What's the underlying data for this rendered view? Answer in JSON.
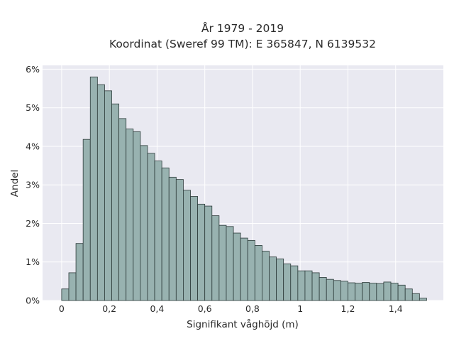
{
  "chart_data": {
    "type": "bar",
    "title": [
      "År 1979 - 2019",
      "Koordinat (Sweref 99 TM): E 365847, N 6139532"
    ],
    "xlabel": "Signifikant våghöjd (m)",
    "ylabel": "Andel",
    "xlim": [
      -0.08,
      1.6
    ],
    "ylim": [
      0,
      6.1
    ],
    "xticks": [
      0,
      0.2,
      0.4,
      0.6,
      0.8,
      1.0,
      1.2,
      1.4
    ],
    "xtick_labels": [
      "0",
      "0,2",
      "0,4",
      "0,6",
      "0,8",
      "1",
      "1,2",
      "1,4"
    ],
    "yticks": [
      0,
      1,
      2,
      3,
      4,
      5,
      6
    ],
    "ytick_labels": [
      "0%",
      "1%",
      "2%",
      "3%",
      "4%",
      "5%",
      "6%"
    ],
    "grid": true,
    "bin_start": 0,
    "bin_width": 0.03,
    "values": [
      0.3,
      0.72,
      1.48,
      4.18,
      5.8,
      5.6,
      5.44,
      5.1,
      4.72,
      4.45,
      4.38,
      4.02,
      3.82,
      3.62,
      3.44,
      3.2,
      3.14,
      2.86,
      2.7,
      2.5,
      2.45,
      2.2,
      1.95,
      1.92,
      1.75,
      1.62,
      1.56,
      1.43,
      1.28,
      1.13,
      1.08,
      0.95,
      0.9,
      0.77,
      0.77,
      0.72,
      0.6,
      0.55,
      0.52,
      0.5,
      0.46,
      0.45,
      0.47,
      0.45,
      0.44,
      0.48,
      0.45,
      0.4,
      0.3,
      0.18,
      0.06
    ],
    "colors": {
      "bar_fill": "#98b2b0",
      "bar_stroke": "#2c3a39",
      "plot_bg": "#e9e9f1",
      "grid": "#ffffff"
    }
  }
}
